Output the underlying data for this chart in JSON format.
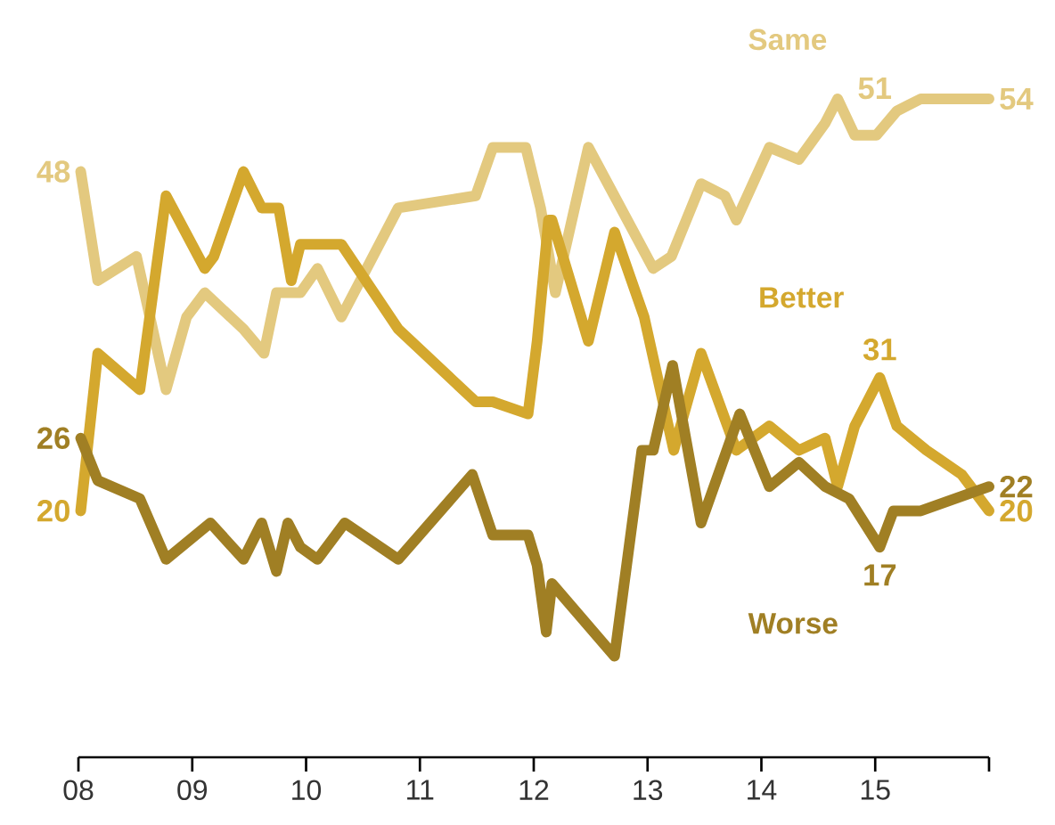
{
  "chart_data": {
    "type": "line",
    "xlim": [
      8,
      16
    ],
    "tick_labels": "x",
    "grid": false,
    "legend": false,
    "marker": "none",
    "line_style": "solid",
    "xticks": [
      {
        "value": 8,
        "label": "08"
      },
      {
        "value": 9,
        "label": "09"
      },
      {
        "value": 10,
        "label": "10"
      },
      {
        "value": 11,
        "label": "11"
      },
      {
        "value": 12,
        "label": "12"
      },
      {
        "value": 13,
        "label": "13"
      },
      {
        "value": 14,
        "label": "14"
      },
      {
        "value": 15,
        "label": "15"
      },
      {
        "value": 16,
        "label": null
      }
    ],
    "series": [
      {
        "name": "Same",
        "color": "#e3c97f",
        "x": [
          8.02,
          8.17,
          8.51,
          8.77,
          8.95,
          9.11,
          9.45,
          9.63,
          9.74,
          9.95,
          10.1,
          10.31,
          10.81,
          11.49,
          11.64,
          11.93,
          12.06,
          12.19,
          12.48,
          13.05,
          13.21,
          13.47,
          13.68,
          13.78,
          14.07,
          14.33,
          14.56,
          14.67,
          14.82,
          15.01,
          15.19,
          15.4,
          15.76,
          16.0
        ],
        "values": [
          48,
          39,
          41,
          30,
          36,
          38,
          35,
          33,
          38,
          38,
          40,
          36,
          45,
          46,
          50,
          50,
          45,
          38,
          50,
          40,
          41,
          47,
          46,
          44,
          50,
          49,
          52,
          54,
          51,
          51,
          53,
          54,
          54,
          54
        ],
        "value_labels": [
          "48",
          null,
          null,
          null,
          null,
          null,
          null,
          null,
          null,
          null,
          null,
          null,
          null,
          null,
          null,
          null,
          null,
          null,
          null,
          null,
          null,
          null,
          null,
          null,
          null,
          null,
          null,
          null,
          "51",
          null,
          null,
          null,
          null,
          "54"
        ]
      },
      {
        "name": "Better",
        "color": "#d4a82e",
        "x": [
          8.02,
          8.17,
          8.54,
          8.77,
          9.11,
          9.19,
          9.45,
          9.61,
          9.76,
          9.87,
          9.95,
          10.31,
          10.81,
          11.49,
          11.64,
          11.95,
          12.03,
          12.13,
          12.16,
          12.48,
          12.71,
          12.97,
          13.23,
          13.47,
          13.78,
          14.07,
          14.33,
          14.56,
          14.67,
          14.82,
          15.04,
          15.19,
          15.45,
          15.76,
          16.0
        ],
        "values": [
          20,
          33,
          30,
          46,
          40,
          41,
          48,
          45,
          45,
          39,
          42,
          42,
          35,
          29,
          29,
          28,
          34,
          44,
          44,
          34,
          43,
          36,
          25,
          33,
          25,
          27,
          25,
          26,
          22,
          27,
          31,
          27,
          25,
          23,
          20
        ],
        "value_labels": [
          "20",
          null,
          null,
          null,
          null,
          null,
          null,
          null,
          null,
          null,
          null,
          null,
          null,
          null,
          null,
          null,
          null,
          null,
          null,
          null,
          null,
          null,
          null,
          null,
          null,
          null,
          null,
          null,
          null,
          null,
          "31",
          null,
          null,
          null,
          "20"
        ]
      },
      {
        "name": "Worse",
        "color": "#a07f24",
        "x": [
          8.02,
          8.17,
          8.54,
          8.77,
          9.16,
          9.45,
          9.61,
          9.74,
          9.84,
          9.95,
          10.1,
          10.34,
          10.81,
          11.46,
          11.64,
          11.95,
          12.03,
          12.11,
          12.16,
          12.71,
          12.95,
          13.05,
          13.22,
          13.47,
          13.81,
          14.07,
          14.33,
          14.56,
          14.77,
          15.04,
          15.16,
          15.4,
          16.0
        ],
        "values": [
          26,
          22.5,
          21,
          16,
          19,
          16,
          19,
          15,
          19,
          17,
          16,
          19,
          16,
          23,
          18,
          18,
          15.5,
          10,
          14,
          8,
          25,
          25,
          32,
          19,
          28,
          22,
          24,
          22,
          21,
          17,
          20,
          20,
          22
        ],
        "value_labels": [
          "26",
          null,
          null,
          null,
          null,
          null,
          null,
          null,
          null,
          null,
          null,
          null,
          null,
          null,
          null,
          null,
          null,
          null,
          null,
          null,
          null,
          null,
          null,
          null,
          null,
          null,
          null,
          null,
          null,
          "17",
          null,
          null,
          "22"
        ]
      }
    ]
  }
}
